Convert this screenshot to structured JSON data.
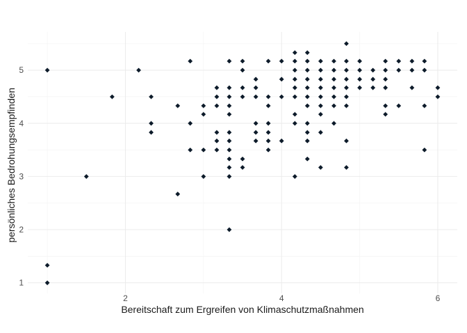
{
  "chart_data": {
    "type": "scatter",
    "title": "",
    "xlabel": "Bereitschaft zum Ergreifen von Klimaschutzmaßnahmen",
    "ylabel": "persönliches Bedrohungsempfinden",
    "xlim": [
      0.75,
      6.25
    ],
    "ylim": [
      0.8,
      5.72
    ],
    "x_ticks": [
      2,
      4,
      6
    ],
    "y_ticks": [
      1,
      2,
      3,
      4,
      5
    ],
    "grid": true,
    "marker": "diamond",
    "point_color": "#0d1b2a",
    "points": [
      [
        1.0,
        5.0
      ],
      [
        1.0,
        1.33
      ],
      [
        1.0,
        1.0
      ],
      [
        1.5,
        3.0
      ],
      [
        1.83,
        4.5
      ],
      [
        2.17,
        5.0
      ],
      [
        2.33,
        4.5
      ],
      [
        2.33,
        4.0
      ],
      [
        2.33,
        3.83
      ],
      [
        2.67,
        4.33
      ],
      [
        2.67,
        2.67
      ],
      [
        2.83,
        5.17
      ],
      [
        2.83,
        4.0
      ],
      [
        2.83,
        3.5
      ],
      [
        3.0,
        4.33
      ],
      [
        3.0,
        4.17
      ],
      [
        3.0,
        3.5
      ],
      [
        3.0,
        3.0
      ],
      [
        3.17,
        4.67
      ],
      [
        3.17,
        4.5
      ],
      [
        3.17,
        4.33
      ],
      [
        3.17,
        3.83
      ],
      [
        3.17,
        3.67
      ],
      [
        3.17,
        3.5
      ],
      [
        3.33,
        5.17
      ],
      [
        3.33,
        4.67
      ],
      [
        3.33,
        4.5
      ],
      [
        3.33,
        4.33
      ],
      [
        3.33,
        4.17
      ],
      [
        3.33,
        3.83
      ],
      [
        3.33,
        3.67
      ],
      [
        3.33,
        3.5
      ],
      [
        3.33,
        3.33
      ],
      [
        3.33,
        3.17
      ],
      [
        3.33,
        3.0
      ],
      [
        3.33,
        2.0
      ],
      [
        3.5,
        5.17
      ],
      [
        3.5,
        5.0
      ],
      [
        3.5,
        4.67
      ],
      [
        3.5,
        4.5
      ],
      [
        3.5,
        3.33
      ],
      [
        3.5,
        3.17
      ],
      [
        3.67,
        4.83
      ],
      [
        3.67,
        4.67
      ],
      [
        3.67,
        4.5
      ],
      [
        3.67,
        4.0
      ],
      [
        3.67,
        3.83
      ],
      [
        3.67,
        3.67
      ],
      [
        3.83,
        5.17
      ],
      [
        3.83,
        4.5
      ],
      [
        3.83,
        4.33
      ],
      [
        3.83,
        4.0
      ],
      [
        3.83,
        3.83
      ],
      [
        3.83,
        3.67
      ],
      [
        3.83,
        3.5
      ],
      [
        4.0,
        5.17
      ],
      [
        4.0,
        4.83
      ],
      [
        4.0,
        4.5
      ],
      [
        4.0,
        3.67
      ],
      [
        4.17,
        5.33
      ],
      [
        4.17,
        5.17
      ],
      [
        4.17,
        5.0
      ],
      [
        4.17,
        4.83
      ],
      [
        4.17,
        4.67
      ],
      [
        4.17,
        4.5
      ],
      [
        4.17,
        4.17
      ],
      [
        4.17,
        4.0
      ],
      [
        4.17,
        3.0
      ],
      [
        4.33,
        5.33
      ],
      [
        4.33,
        5.17
      ],
      [
        4.33,
        5.0
      ],
      [
        4.33,
        4.83
      ],
      [
        4.33,
        4.67
      ],
      [
        4.33,
        4.5
      ],
      [
        4.33,
        4.33
      ],
      [
        4.33,
        4.0
      ],
      [
        4.33,
        3.83
      ],
      [
        4.33,
        3.67
      ],
      [
        4.33,
        3.33
      ],
      [
        4.5,
        5.17
      ],
      [
        4.5,
        5.0
      ],
      [
        4.5,
        4.83
      ],
      [
        4.5,
        4.67
      ],
      [
        4.5,
        4.5
      ],
      [
        4.5,
        4.33
      ],
      [
        4.5,
        4.17
      ],
      [
        4.5,
        3.83
      ],
      [
        4.5,
        3.17
      ],
      [
        4.67,
        5.17
      ],
      [
        4.67,
        5.0
      ],
      [
        4.67,
        4.83
      ],
      [
        4.67,
        4.67
      ],
      [
        4.67,
        4.5
      ],
      [
        4.67,
        4.33
      ],
      [
        4.67,
        4.0
      ],
      [
        4.83,
        5.5
      ],
      [
        4.83,
        5.17
      ],
      [
        4.83,
        5.0
      ],
      [
        4.83,
        4.83
      ],
      [
        4.83,
        4.67
      ],
      [
        4.83,
        4.5
      ],
      [
        4.83,
        4.33
      ],
      [
        4.83,
        3.67
      ],
      [
        4.83,
        3.17
      ],
      [
        5.0,
        5.17
      ],
      [
        5.0,
        5.0
      ],
      [
        5.0,
        4.83
      ],
      [
        5.0,
        4.67
      ],
      [
        5.17,
        5.0
      ],
      [
        5.17,
        4.83
      ],
      [
        5.17,
        4.67
      ],
      [
        5.33,
        5.17
      ],
      [
        5.33,
        5.0
      ],
      [
        5.33,
        4.83
      ],
      [
        5.33,
        4.67
      ],
      [
        5.33,
        4.33
      ],
      [
        5.33,
        4.17
      ],
      [
        5.5,
        5.17
      ],
      [
        5.5,
        5.0
      ],
      [
        5.5,
        4.33
      ],
      [
        5.67,
        5.17
      ],
      [
        5.67,
        5.0
      ],
      [
        5.67,
        4.67
      ],
      [
        5.83,
        5.17
      ],
      [
        5.83,
        5.0
      ],
      [
        5.83,
        4.33
      ],
      [
        5.83,
        3.5
      ],
      [
        6.0,
        4.67
      ],
      [
        6.0,
        4.5
      ]
    ]
  }
}
